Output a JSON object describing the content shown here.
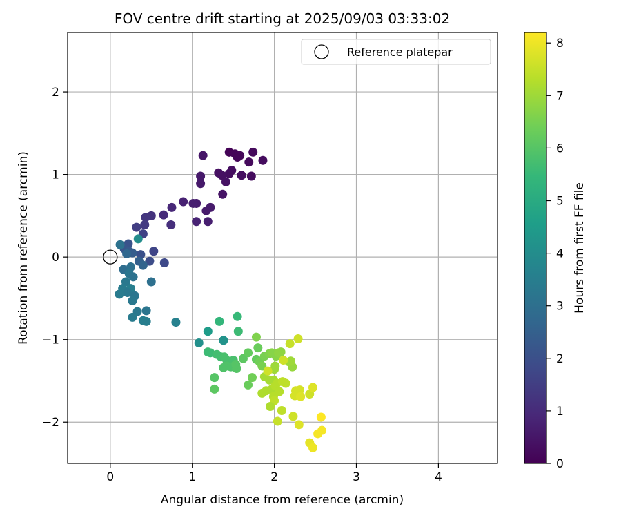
{
  "chart_data": {
    "type": "scatter",
    "title": "FOV centre drift starting at 2025/09/03 03:33:02",
    "xlabel": "Angular distance from reference (arcmin)",
    "ylabel": "Rotation from reference (arcmin)",
    "xlim": [
      -0.52,
      4.72
    ],
    "ylim": [
      -2.5,
      2.72
    ],
    "xticks": [
      0,
      1,
      2,
      3,
      4
    ],
    "xtick_labels": [
      "0",
      "1",
      "2",
      "3",
      "4"
    ],
    "yticks": [
      -2,
      -1,
      0,
      1,
      2
    ],
    "ytick_labels": [
      "−2",
      "−1",
      "0",
      "1",
      "2"
    ],
    "grid": true,
    "legend": {
      "placement": "top-right",
      "entries": [
        "Reference platepar"
      ]
    },
    "reference_point": {
      "name": "Reference platepar",
      "x": 0,
      "y": 0
    },
    "colorbar": {
      "label": "Hours from first FF file",
      "colormap": "viridis",
      "min": 0,
      "max": 8.2,
      "ticks": [
        0,
        1,
        2,
        3,
        4,
        5,
        6,
        7,
        8
      ],
      "tick_labels": [
        "0",
        "1",
        "2",
        "3",
        "4",
        "5",
        "6",
        "7",
        "8"
      ]
    },
    "colors": {
      "viridis_stops": [
        "#440154",
        "#482878",
        "#3e4a89",
        "#31688e",
        "#26828e",
        "#1f9e89",
        "#35b779",
        "#6ece58",
        "#b5de2b",
        "#fde725"
      ]
    },
    "points": [
      {
        "x": 1.45,
        "y": 1.27,
        "c": 0.05
      },
      {
        "x": 1.52,
        "y": 1.25,
        "c": 0.1
      },
      {
        "x": 1.58,
        "y": 1.23,
        "c": 0.15
      },
      {
        "x": 1.55,
        "y": 1.21,
        "c": 0.1
      },
      {
        "x": 1.74,
        "y": 1.27,
        "c": 0.2
      },
      {
        "x": 1.86,
        "y": 1.17,
        "c": 0.25
      },
      {
        "x": 1.69,
        "y": 1.15,
        "c": 0.2
      },
      {
        "x": 1.48,
        "y": 1.05,
        "c": 0.3
      },
      {
        "x": 1.45,
        "y": 1.01,
        "c": 0.3
      },
      {
        "x": 1.32,
        "y": 1.02,
        "c": 0.35
      },
      {
        "x": 1.36,
        "y": 0.99,
        "c": 0.35
      },
      {
        "x": 1.6,
        "y": 0.99,
        "c": 0.3
      },
      {
        "x": 1.72,
        "y": 0.98,
        "c": 0.25
      },
      {
        "x": 1.41,
        "y": 0.91,
        "c": 0.4
      },
      {
        "x": 1.37,
        "y": 0.76,
        "c": 0.45
      },
      {
        "x": 1.13,
        "y": 1.23,
        "c": 0.5
      },
      {
        "x": 1.1,
        "y": 0.98,
        "c": 0.55
      },
      {
        "x": 1.1,
        "y": 0.89,
        "c": 0.55
      },
      {
        "x": 1.22,
        "y": 0.6,
        "c": 0.6
      },
      {
        "x": 1.17,
        "y": 0.56,
        "c": 0.6
      },
      {
        "x": 1.05,
        "y": 0.65,
        "c": 0.65
      },
      {
        "x": 1.01,
        "y": 0.65,
        "c": 0.7
      },
      {
        "x": 0.89,
        "y": 0.67,
        "c": 0.75
      },
      {
        "x": 1.19,
        "y": 0.43,
        "c": 0.7
      },
      {
        "x": 1.05,
        "y": 0.43,
        "c": 0.8
      },
      {
        "x": 0.75,
        "y": 0.6,
        "c": 0.9
      },
      {
        "x": 0.65,
        "y": 0.51,
        "c": 1.0
      },
      {
        "x": 0.74,
        "y": 0.39,
        "c": 1.1
      },
      {
        "x": 0.5,
        "y": 0.5,
        "c": 1.2
      },
      {
        "x": 0.43,
        "y": 0.48,
        "c": 1.3
      },
      {
        "x": 0.42,
        "y": 0.39,
        "c": 1.4
      },
      {
        "x": 0.32,
        "y": 0.36,
        "c": 1.5
      },
      {
        "x": 0.4,
        "y": 0.28,
        "c": 1.6
      },
      {
        "x": 0.53,
        "y": 0.07,
        "c": 1.7
      },
      {
        "x": 0.66,
        "y": -0.07,
        "c": 1.8
      },
      {
        "x": 0.48,
        "y": -0.05,
        "c": 1.9
      },
      {
        "x": 0.37,
        "y": 0.03,
        "c": 2.0
      },
      {
        "x": 0.22,
        "y": 0.16,
        "c": 2.1
      },
      {
        "x": 0.17,
        "y": 0.1,
        "c": 2.2
      },
      {
        "x": 0.23,
        "y": 0.07,
        "c": 2.3
      },
      {
        "x": 0.27,
        "y": 0.05,
        "c": 2.4
      },
      {
        "x": 0.35,
        "y": -0.05,
        "c": 2.5
      },
      {
        "x": 0.4,
        "y": -0.1,
        "c": 2.6
      },
      {
        "x": 0.12,
        "y": 0.15,
        "c": 3.1
      },
      {
        "x": 0.2,
        "y": 0.04,
        "c": 2.7
      },
      {
        "x": 0.16,
        "y": -0.15,
        "c": 2.9
      },
      {
        "x": 0.25,
        "y": -0.12,
        "c": 3.0
      },
      {
        "x": 0.23,
        "y": -0.2,
        "c": 3.2
      },
      {
        "x": 0.28,
        "y": -0.24,
        "c": 3.1
      },
      {
        "x": 0.19,
        "y": -0.3,
        "c": 3.3
      },
      {
        "x": 0.15,
        "y": -0.38,
        "c": 3.4
      },
      {
        "x": 0.25,
        "y": -0.38,
        "c": 3.5
      },
      {
        "x": 0.21,
        "y": -0.43,
        "c": 3.3
      },
      {
        "x": 0.11,
        "y": -0.45,
        "c": 3.4
      },
      {
        "x": 0.3,
        "y": -0.47,
        "c": 3.2
      },
      {
        "x": 0.27,
        "y": -0.53,
        "c": 3.3
      },
      {
        "x": 0.33,
        "y": -0.66,
        "c": 3.3
      },
      {
        "x": 0.44,
        "y": -0.65,
        "c": 3.2
      },
      {
        "x": 0.27,
        "y": -0.73,
        "c": 3.4
      },
      {
        "x": 0.4,
        "y": -0.77,
        "c": 3.5
      },
      {
        "x": 0.44,
        "y": -0.78,
        "c": 3.5
      },
      {
        "x": 0.5,
        "y": -0.3,
        "c": 3.0
      },
      {
        "x": 0.8,
        "y": -0.79,
        "c": 3.6
      },
      {
        "x": 0.34,
        "y": 0.22,
        "c": 4.0
      },
      {
        "x": 1.08,
        "y": -1.04,
        "c": 4.1
      },
      {
        "x": 1.38,
        "y": -1.01,
        "c": 4.2
      },
      {
        "x": 1.19,
        "y": -0.9,
        "c": 4.5
      },
      {
        "x": 1.33,
        "y": -0.78,
        "c": 5.4
      },
      {
        "x": 1.55,
        "y": -0.72,
        "c": 5.5
      },
      {
        "x": 1.56,
        "y": -0.9,
        "c": 5.6
      },
      {
        "x": 1.19,
        "y": -1.15,
        "c": 5.6
      },
      {
        "x": 1.22,
        "y": -1.16,
        "c": 5.6
      },
      {
        "x": 1.3,
        "y": -1.18,
        "c": 5.7
      },
      {
        "x": 1.35,
        "y": -1.21,
        "c": 5.7
      },
      {
        "x": 1.39,
        "y": -1.21,
        "c": 5.8
      },
      {
        "x": 1.42,
        "y": -1.25,
        "c": 5.8
      },
      {
        "x": 1.5,
        "y": -1.25,
        "c": 5.8
      },
      {
        "x": 1.38,
        "y": -1.34,
        "c": 5.9
      },
      {
        "x": 1.42,
        "y": -1.32,
        "c": 5.9
      },
      {
        "x": 1.47,
        "y": -1.33,
        "c": 5.9
      },
      {
        "x": 1.54,
        "y": -1.35,
        "c": 6.0
      },
      {
        "x": 1.53,
        "y": -1.3,
        "c": 6.0
      },
      {
        "x": 1.27,
        "y": -1.46,
        "c": 6.0
      },
      {
        "x": 1.27,
        "y": -1.6,
        "c": 6.1
      },
      {
        "x": 1.62,
        "y": -1.23,
        "c": 6.1
      },
      {
        "x": 1.68,
        "y": -1.16,
        "c": 6.2
      },
      {
        "x": 1.78,
        "y": -1.24,
        "c": 6.2
      },
      {
        "x": 1.8,
        "y": -1.1,
        "c": 6.3
      },
      {
        "x": 1.68,
        "y": -1.55,
        "c": 6.3
      },
      {
        "x": 1.73,
        "y": -1.46,
        "c": 6.4
      },
      {
        "x": 1.82,
        "y": -1.27,
        "c": 6.4
      },
      {
        "x": 1.85,
        "y": -1.32,
        "c": 6.5
      },
      {
        "x": 1.88,
        "y": -1.2,
        "c": 6.5
      },
      {
        "x": 1.78,
        "y": -0.97,
        "c": 6.6
      },
      {
        "x": 1.94,
        "y": -1.17,
        "c": 6.6
      },
      {
        "x": 1.97,
        "y": -1.16,
        "c": 6.7
      },
      {
        "x": 2.02,
        "y": -1.2,
        "c": 6.7
      },
      {
        "x": 2.05,
        "y": -1.16,
        "c": 6.8
      },
      {
        "x": 2.08,
        "y": -1.15,
        "c": 6.8
      },
      {
        "x": 2.22,
        "y": -1.33,
        "c": 6.9
      },
      {
        "x": 2.18,
        "y": -1.27,
        "c": 7.0
      },
      {
        "x": 2.2,
        "y": -1.26,
        "c": 7.0
      },
      {
        "x": 2.0,
        "y": -1.36,
        "c": 7.0
      },
      {
        "x": 2.01,
        "y": -1.32,
        "c": 7.0
      },
      {
        "x": 1.88,
        "y": -1.45,
        "c": 7.1
      },
      {
        "x": 1.94,
        "y": -1.49,
        "c": 7.1
      },
      {
        "x": 1.99,
        "y": -1.49,
        "c": 7.1
      },
      {
        "x": 1.85,
        "y": -1.65,
        "c": 7.2
      },
      {
        "x": 1.9,
        "y": -1.62,
        "c": 7.2
      },
      {
        "x": 1.97,
        "y": -1.6,
        "c": 7.2
      },
      {
        "x": 2.01,
        "y": -1.56,
        "c": 7.3
      },
      {
        "x": 2.03,
        "y": -1.53,
        "c": 7.3
      },
      {
        "x": 1.99,
        "y": -1.69,
        "c": 7.3
      },
      {
        "x": 2.06,
        "y": -1.63,
        "c": 7.3
      },
      {
        "x": 2.0,
        "y": -1.74,
        "c": 7.4
      },
      {
        "x": 1.95,
        "y": -1.81,
        "c": 7.2
      },
      {
        "x": 2.04,
        "y": -1.99,
        "c": 7.5
      },
      {
        "x": 2.09,
        "y": -1.86,
        "c": 7.4
      },
      {
        "x": 2.1,
        "y": -1.51,
        "c": 7.4
      },
      {
        "x": 2.14,
        "y": -1.53,
        "c": 7.4
      },
      {
        "x": 2.11,
        "y": -1.25,
        "c": 7.6
      },
      {
        "x": 2.19,
        "y": -1.05,
        "c": 7.5
      },
      {
        "x": 2.29,
        "y": -0.99,
        "c": 7.6
      },
      {
        "x": 1.92,
        "y": -1.38,
        "c": 7.6
      },
      {
        "x": 2.23,
        "y": -1.93,
        "c": 7.6
      },
      {
        "x": 2.26,
        "y": -1.62,
        "c": 7.7
      },
      {
        "x": 2.31,
        "y": -1.61,
        "c": 7.7
      },
      {
        "x": 2.25,
        "y": -1.68,
        "c": 7.7
      },
      {
        "x": 2.32,
        "y": -1.69,
        "c": 7.8
      },
      {
        "x": 2.3,
        "y": -2.03,
        "c": 7.8
      },
      {
        "x": 2.43,
        "y": -1.66,
        "c": 7.6
      },
      {
        "x": 2.47,
        "y": -1.58,
        "c": 7.8
      },
      {
        "x": 2.43,
        "y": -2.25,
        "c": 7.9
      },
      {
        "x": 2.47,
        "y": -2.31,
        "c": 8.0
      },
      {
        "x": 2.53,
        "y": -2.14,
        "c": 8.1
      },
      {
        "x": 2.58,
        "y": -2.1,
        "c": 8.1
      },
      {
        "x": 2.57,
        "y": -1.94,
        "c": 8.2
      }
    ]
  }
}
